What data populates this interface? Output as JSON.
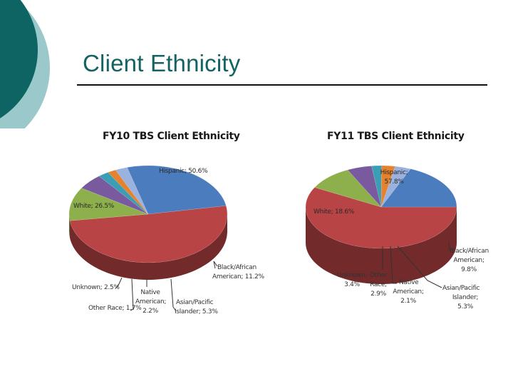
{
  "slide": {
    "title": "Client Ethnicity",
    "colors": {
      "title": "#146262",
      "deco_dark": "#0d6463",
      "deco_light": "#9bc9cb",
      "rule": "#111111"
    }
  },
  "chart_data": [
    {
      "type": "pie",
      "variant": "3d",
      "title": "FY10 TBS Client Ethnicity",
      "categories": [
        "Hispanic",
        "Black/African American",
        "Asian/Pacific Islander",
        "Native American",
        "Other Race",
        "Unknown",
        "White"
      ],
      "values": [
        50.6,
        11.2,
        5.3,
        2.2,
        1.7,
        2.5,
        26.5
      ],
      "colors": [
        "#b84446",
        "#8eb04c",
        "#7a5a9e",
        "#3a9eb4",
        "#e4822e",
        "#9bb2de",
        "#4a7cbe"
      ],
      "labels": [
        "Hispanic; 50.6%",
        "Black/African American; 11.2%",
        "Asian/Pacific Islander; 5.3%",
        "Native American; 2.2%",
        "Other Race; 1.7%",
        "Unknown; 2.5%",
        "White; 26.5%"
      ],
      "label_lines": {
        "hispanic": "Hispanic; 50.6%",
        "white": "White; 26.5%",
        "black_1": "Black/African",
        "black_2": "American; 11.2%",
        "asian_1": "Asian/Pacific",
        "asian_2": "Islander; 5.3%",
        "native_1": "Native",
        "native_2": "American;",
        "native_3": "2.2%",
        "other": "Other Race; 1.7%",
        "unknown": "Unknown; 2.5%"
      }
    },
    {
      "type": "pie",
      "variant": "3d",
      "title": "FY11 TBS Client Ethnicity",
      "categories": [
        "Hispanic",
        "Black/African American",
        "Asian/Pacific Islander",
        "Native American",
        "Other Race",
        "Unknown",
        "White"
      ],
      "values": [
        57.8,
        9.8,
        5.3,
        2.1,
        2.9,
        3.4,
        18.6
      ],
      "colors": [
        "#b84446",
        "#8eb04c",
        "#7a5a9e",
        "#3a9eb4",
        "#e4822e",
        "#9bb2de",
        "#4a7cbe"
      ],
      "labels": [
        "Hispanic; 57.8%",
        "Black/African American; 9.8%",
        "Asian/Pacific Islander; 5.3%",
        "Native American; 2.1%",
        "Other Race; 2.9%",
        "Unknown; 3.4%",
        "White; 18.6%"
      ],
      "label_lines": {
        "hispanic_1": "Hispanic;",
        "hispanic_2": "57.8%",
        "white": "White; 18.6%",
        "black_1": "Black/African",
        "black_2": "American;",
        "black_3": "9.8%",
        "asian_1": "Asian/Pacific",
        "asian_2": "Islander;",
        "asian_3": "5.3%",
        "native_1": "Native",
        "native_2": "American;",
        "native_3": "2.1%",
        "other_1": "Other",
        "other_2": "Race;",
        "other_3": "2.9%",
        "unknown_1": "Unknown;",
        "unknown_2": "3.4%"
      }
    }
  ]
}
